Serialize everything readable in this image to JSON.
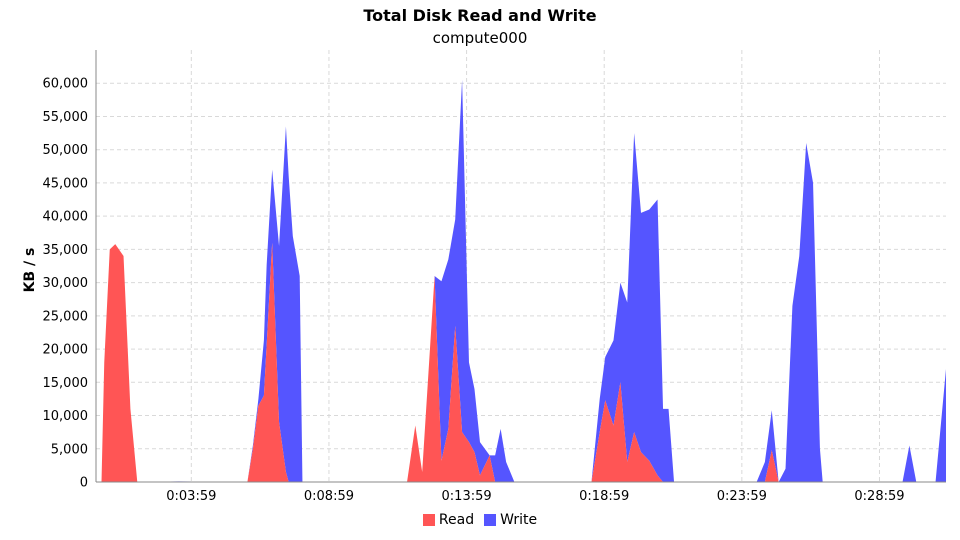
{
  "chart_data": {
    "type": "area",
    "title": "Total Disk Read and Write",
    "subtitle": "compute000",
    "xlabel": "",
    "ylabel": "KB / s",
    "ylim": [
      0,
      65000
    ],
    "yticks": [
      0,
      5000,
      10000,
      15000,
      20000,
      25000,
      30000,
      35000,
      40000,
      45000,
      50000,
      55000,
      60000
    ],
    "ytick_labels": [
      "0",
      "5,000",
      "10,000",
      "15,000",
      "20,000",
      "25,000",
      "30,000",
      "35,000",
      "40,000",
      "45,000",
      "50,000",
      "55,000",
      "60,000"
    ],
    "x_unit": "minutes",
    "xlim": [
      0.52,
      31.4
    ],
    "xticks": [
      3.983,
      8.983,
      13.983,
      18.983,
      23.983,
      28.983
    ],
    "xtick_labels": [
      "0:03:59",
      "0:08:59",
      "0:13:59",
      "0:18:59",
      "0:23:59",
      "0:28:59"
    ],
    "grid": true,
    "legend_position": "bottom-center",
    "stacked": true,
    "series": [
      {
        "name": "Read",
        "color": "#ff5555",
        "points": [
          [
            0.52,
            0
          ],
          [
            0.72,
            0
          ],
          [
            0.82,
            18000
          ],
          [
            1.02,
            35000
          ],
          [
            1.22,
            35800
          ],
          [
            1.52,
            34000
          ],
          [
            1.77,
            11000
          ],
          [
            2.02,
            0
          ],
          [
            6.02,
            0
          ],
          [
            6.22,
            5000
          ],
          [
            6.42,
            11500
          ],
          [
            6.62,
            13000
          ],
          [
            6.92,
            36000
          ],
          [
            7.17,
            9000
          ],
          [
            7.42,
            1500
          ],
          [
            7.52,
            0
          ],
          [
            11.82,
            0
          ],
          [
            12.12,
            8500
          ],
          [
            12.37,
            1500
          ],
          [
            12.82,
            31000
          ],
          [
            13.07,
            3200
          ],
          [
            13.32,
            8000
          ],
          [
            13.57,
            23500
          ],
          [
            13.82,
            7500
          ],
          [
            14.07,
            6000
          ],
          [
            14.27,
            4500
          ],
          [
            14.47,
            1000
          ],
          [
            14.82,
            4000
          ],
          [
            15.02,
            0
          ],
          [
            18.52,
            0
          ],
          [
            18.82,
            7500
          ],
          [
            19.02,
            12300
          ],
          [
            19.32,
            8500
          ],
          [
            19.57,
            15000
          ],
          [
            19.82,
            3000
          ],
          [
            20.07,
            7500
          ],
          [
            20.32,
            4500
          ],
          [
            20.62,
            3200
          ],
          [
            20.92,
            1000
          ],
          [
            21.12,
            0
          ],
          [
            24.82,
            0
          ],
          [
            25.07,
            4800
          ],
          [
            25.32,
            0
          ],
          [
            31.4,
            0
          ]
        ]
      },
      {
        "name": "Write",
        "color": "#5555ff",
        "points": [
          [
            0.52,
            0
          ],
          [
            2.02,
            0
          ],
          [
            3.52,
            100
          ],
          [
            6.02,
            0
          ],
          [
            6.42,
            1000
          ],
          [
            6.72,
            12000
          ],
          [
            6.92,
            11000
          ],
          [
            7.17,
            26500
          ],
          [
            7.42,
            52000
          ],
          [
            7.67,
            37000
          ],
          [
            7.92,
            31000
          ],
          [
            8.02,
            0
          ],
          [
            11.82,
            0
          ],
          [
            12.12,
            0
          ],
          [
            12.32,
            0
          ],
          [
            12.82,
            0
          ],
          [
            13.07,
            27000
          ],
          [
            13.32,
            25500
          ],
          [
            13.57,
            16000
          ],
          [
            13.82,
            53000
          ],
          [
            14.07,
            12000
          ],
          [
            14.27,
            9500
          ],
          [
            14.47,
            5000
          ],
          [
            14.82,
            0
          ],
          [
            15.22,
            8000
          ],
          [
            15.42,
            3000
          ],
          [
            15.72,
            0
          ],
          [
            18.52,
            0
          ],
          [
            18.82,
            5000
          ],
          [
            19.02,
            6500
          ],
          [
            19.32,
            12800
          ],
          [
            19.57,
            15000
          ],
          [
            19.82,
            24000
          ],
          [
            20.07,
            45000
          ],
          [
            20.32,
            36000
          ],
          [
            20.62,
            37800
          ],
          [
            20.92,
            41500
          ],
          [
            21.12,
            11000
          ],
          [
            21.32,
            11000
          ],
          [
            21.52,
            0
          ],
          [
            24.52,
            0
          ],
          [
            24.82,
            3000
          ],
          [
            25.07,
            6000
          ],
          [
            25.32,
            0
          ],
          [
            25.57,
            2000
          ],
          [
            25.82,
            26500
          ],
          [
            26.07,
            34000
          ],
          [
            26.32,
            51000
          ],
          [
            26.57,
            45000
          ],
          [
            26.82,
            5000
          ],
          [
            26.92,
            0
          ],
          [
            29.82,
            0
          ],
          [
            30.07,
            5500
          ],
          [
            30.32,
            0
          ],
          [
            31.02,
            0
          ],
          [
            31.4,
            17000
          ]
        ]
      }
    ]
  }
}
